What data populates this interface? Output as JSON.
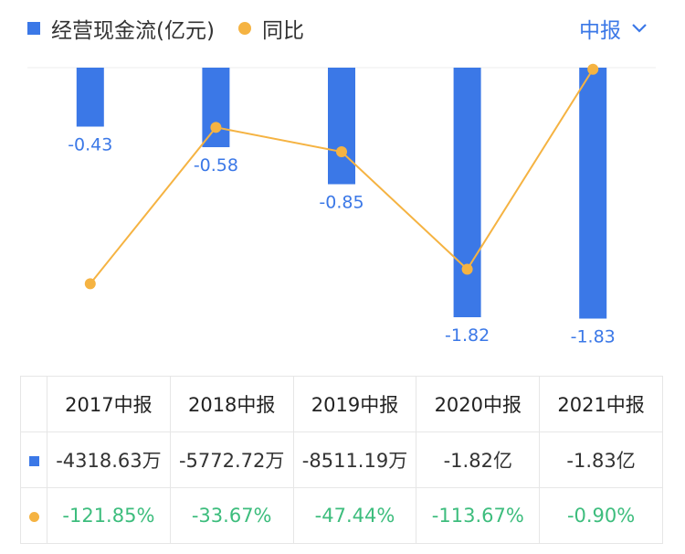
{
  "legend": {
    "bar_label": "经营现金流(亿元)",
    "line_label": "同比"
  },
  "period_selector": {
    "label": "中报",
    "icon": "chevron-down-icon"
  },
  "colors": {
    "bar": "#3b78e7",
    "line": "#f5b342",
    "accent": "#3b78e7",
    "positive_pct": "#3dbd7d",
    "bar_label": "#3b78e7"
  },
  "chart_data": {
    "type": "bar",
    "categories": [
      "2017中报",
      "2018中报",
      "2019中报",
      "2020中报",
      "2021中报"
    ],
    "series": [
      {
        "name": "经营现金流(亿元)",
        "type": "bar",
        "values": [
          -0.43,
          -0.58,
          -0.85,
          -1.82,
          -1.83
        ],
        "labels": [
          "-0.43",
          "-0.58",
          "-0.85",
          "-1.82",
          "-1.83"
        ]
      },
      {
        "name": "同比",
        "type": "line",
        "values": [
          -121.85,
          -33.67,
          -47.44,
          -113.67,
          -0.9
        ]
      }
    ],
    "ylim_bar": [
      -2.0,
      0
    ],
    "ylim_line": [
      -150,
      0
    ]
  },
  "table": {
    "headers": [
      "2017中报",
      "2018中报",
      "2019中报",
      "2020中报",
      "2021中报"
    ],
    "cashflow_row": [
      "-4318.63万",
      "-5772.72万",
      "-8511.19万",
      "-1.82亿",
      "-1.83亿"
    ],
    "yoy_row": [
      "-121.85%",
      "-33.67%",
      "-47.44%",
      "-113.67%",
      "-0.90%"
    ]
  }
}
